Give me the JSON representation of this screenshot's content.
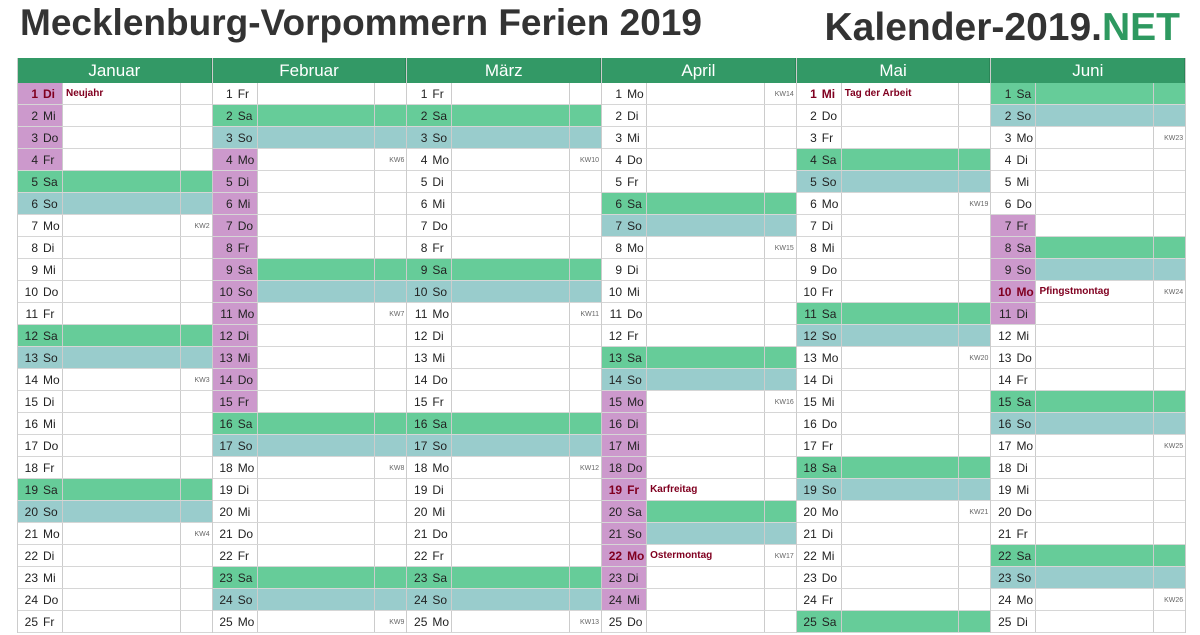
{
  "title": "Mecklenburg-Vorpommern Ferien 2019",
  "brand": {
    "main": "Kalender-2019.",
    "accent": "NET"
  },
  "colors": {
    "header": "#339966",
    "saturday": "#66cc99",
    "sunday": "#99cccc",
    "vacation": "#cc99cc",
    "holiday_text": "#800020",
    "brand_accent": "#2e9960"
  },
  "months": [
    {
      "name": "Januar",
      "days": [
        [
          "1",
          "Di",
          "",
          "Neujahr",
          1
        ],
        [
          "2",
          "Mi",
          "",
          "",
          1
        ],
        [
          "3",
          "Do",
          "",
          "",
          1
        ],
        [
          "4",
          "Fr",
          "",
          "",
          1
        ],
        [
          "5",
          "Sa",
          "",
          "",
          0
        ],
        [
          "6",
          "So",
          "",
          "",
          0
        ],
        [
          "7",
          "Mo",
          "KW2",
          "",
          0
        ],
        [
          "8",
          "Di",
          "",
          "",
          0
        ],
        [
          "9",
          "Mi",
          "",
          "",
          0
        ],
        [
          "10",
          "Do",
          "",
          "",
          0
        ],
        [
          "11",
          "Fr",
          "",
          "",
          0
        ],
        [
          "12",
          "Sa",
          "",
          "",
          0
        ],
        [
          "13",
          "So",
          "",
          "",
          0
        ],
        [
          "14",
          "Mo",
          "KW3",
          "",
          0
        ],
        [
          "15",
          "Di",
          "",
          "",
          0
        ],
        [
          "16",
          "Mi",
          "",
          "",
          0
        ],
        [
          "17",
          "Do",
          "",
          "",
          0
        ],
        [
          "18",
          "Fr",
          "",
          "",
          0
        ],
        [
          "19",
          "Sa",
          "",
          "",
          0
        ],
        [
          "20",
          "So",
          "",
          "",
          0
        ],
        [
          "21",
          "Mo",
          "KW4",
          "",
          0
        ],
        [
          "22",
          "Di",
          "",
          "",
          0
        ],
        [
          "23",
          "Mi",
          "",
          "",
          0
        ],
        [
          "24",
          "Do",
          "",
          "",
          0
        ],
        [
          "25",
          "Fr",
          "",
          "",
          0
        ]
      ]
    },
    {
      "name": "Februar",
      "days": [
        [
          "1",
          "Fr",
          "",
          "",
          0
        ],
        [
          "2",
          "Sa",
          "",
          "",
          0
        ],
        [
          "3",
          "So",
          "",
          "",
          0
        ],
        [
          "4",
          "Mo",
          "KW6",
          "",
          1
        ],
        [
          "5",
          "Di",
          "",
          "",
          1
        ],
        [
          "6",
          "Mi",
          "",
          "",
          1
        ],
        [
          "7",
          "Do",
          "",
          "",
          1
        ],
        [
          "8",
          "Fr",
          "",
          "",
          1
        ],
        [
          "9",
          "Sa",
          "",
          "",
          1
        ],
        [
          "10",
          "So",
          "",
          "",
          1
        ],
        [
          "11",
          "Mo",
          "KW7",
          "",
          1
        ],
        [
          "12",
          "Di",
          "",
          "",
          1
        ],
        [
          "13",
          "Mi",
          "",
          "",
          1
        ],
        [
          "14",
          "Do",
          "",
          "",
          1
        ],
        [
          "15",
          "Fr",
          "",
          "",
          1
        ],
        [
          "16",
          "Sa",
          "",
          "",
          0
        ],
        [
          "17",
          "So",
          "",
          "",
          0
        ],
        [
          "18",
          "Mo",
          "KW8",
          "",
          0
        ],
        [
          "19",
          "Di",
          "",
          "",
          0
        ],
        [
          "20",
          "Mi",
          "",
          "",
          0
        ],
        [
          "21",
          "Do",
          "",
          "",
          0
        ],
        [
          "22",
          "Fr",
          "",
          "",
          0
        ],
        [
          "23",
          "Sa",
          "",
          "",
          0
        ],
        [
          "24",
          "So",
          "",
          "",
          0
        ],
        [
          "25",
          "Mo",
          "KW9",
          "",
          0
        ]
      ]
    },
    {
      "name": "März",
      "days": [
        [
          "1",
          "Fr",
          "",
          "",
          0
        ],
        [
          "2",
          "Sa",
          "",
          "",
          0
        ],
        [
          "3",
          "So",
          "",
          "",
          0
        ],
        [
          "4",
          "Mo",
          "KW10",
          "",
          0
        ],
        [
          "5",
          "Di",
          "",
          "",
          0
        ],
        [
          "6",
          "Mi",
          "",
          "",
          0
        ],
        [
          "7",
          "Do",
          "",
          "",
          0
        ],
        [
          "8",
          "Fr",
          "",
          "",
          0
        ],
        [
          "9",
          "Sa",
          "",
          "",
          0
        ],
        [
          "10",
          "So",
          "",
          "",
          0
        ],
        [
          "11",
          "Mo",
          "KW11",
          "",
          0
        ],
        [
          "12",
          "Di",
          "",
          "",
          0
        ],
        [
          "13",
          "Mi",
          "",
          "",
          0
        ],
        [
          "14",
          "Do",
          "",
          "",
          0
        ],
        [
          "15",
          "Fr",
          "",
          "",
          0
        ],
        [
          "16",
          "Sa",
          "",
          "",
          0
        ],
        [
          "17",
          "So",
          "",
          "",
          0
        ],
        [
          "18",
          "Mo",
          "KW12",
          "",
          0
        ],
        [
          "19",
          "Di",
          "",
          "",
          0
        ],
        [
          "20",
          "Mi",
          "",
          "",
          0
        ],
        [
          "21",
          "Do",
          "",
          "",
          0
        ],
        [
          "22",
          "Fr",
          "",
          "",
          0
        ],
        [
          "23",
          "Sa",
          "",
          "",
          0
        ],
        [
          "24",
          "So",
          "",
          "",
          0
        ],
        [
          "25",
          "Mo",
          "KW13",
          "",
          0
        ]
      ]
    },
    {
      "name": "April",
      "days": [
        [
          "1",
          "Mo",
          "KW14",
          "",
          0
        ],
        [
          "2",
          "Di",
          "",
          "",
          0
        ],
        [
          "3",
          "Mi",
          "",
          "",
          0
        ],
        [
          "4",
          "Do",
          "",
          "",
          0
        ],
        [
          "5",
          "Fr",
          "",
          "",
          0
        ],
        [
          "6",
          "Sa",
          "",
          "",
          0
        ],
        [
          "7",
          "So",
          "",
          "",
          0
        ],
        [
          "8",
          "Mo",
          "KW15",
          "",
          0
        ],
        [
          "9",
          "Di",
          "",
          "",
          0
        ],
        [
          "10",
          "Mi",
          "",
          "",
          0
        ],
        [
          "11",
          "Do",
          "",
          "",
          0
        ],
        [
          "12",
          "Fr",
          "",
          "",
          0
        ],
        [
          "13",
          "Sa",
          "",
          "",
          0
        ],
        [
          "14",
          "So",
          "",
          "",
          0
        ],
        [
          "15",
          "Mo",
          "KW16",
          "",
          1
        ],
        [
          "16",
          "Di",
          "",
          "",
          1
        ],
        [
          "17",
          "Mi",
          "",
          "",
          1
        ],
        [
          "18",
          "Do",
          "",
          "",
          1
        ],
        [
          "19",
          "Fr",
          "",
          "Karfreitag",
          1
        ],
        [
          "20",
          "Sa",
          "",
          "",
          1
        ],
        [
          "21",
          "So",
          "",
          "",
          1
        ],
        [
          "22",
          "Mo",
          "KW17",
          "Ostermontag",
          1
        ],
        [
          "23",
          "Di",
          "",
          "",
          1
        ],
        [
          "24",
          "Mi",
          "",
          "",
          1
        ],
        [
          "25",
          "Do",
          "",
          "",
          0
        ]
      ]
    },
    {
      "name": "Mai",
      "days": [
        [
          "1",
          "Mi",
          "",
          "Tag der Arbeit",
          0
        ],
        [
          "2",
          "Do",
          "",
          "",
          0
        ],
        [
          "3",
          "Fr",
          "",
          "",
          0
        ],
        [
          "4",
          "Sa",
          "",
          "",
          0
        ],
        [
          "5",
          "So",
          "",
          "",
          0
        ],
        [
          "6",
          "Mo",
          "KW19",
          "",
          0
        ],
        [
          "7",
          "Di",
          "",
          "",
          0
        ],
        [
          "8",
          "Mi",
          "",
          "",
          0
        ],
        [
          "9",
          "Do",
          "",
          "",
          0
        ],
        [
          "10",
          "Fr",
          "",
          "",
          0
        ],
        [
          "11",
          "Sa",
          "",
          "",
          0
        ],
        [
          "12",
          "So",
          "",
          "",
          0
        ],
        [
          "13",
          "Mo",
          "KW20",
          "",
          0
        ],
        [
          "14",
          "Di",
          "",
          "",
          0
        ],
        [
          "15",
          "Mi",
          "",
          "",
          0
        ],
        [
          "16",
          "Do",
          "",
          "",
          0
        ],
        [
          "17",
          "Fr",
          "",
          "",
          0
        ],
        [
          "18",
          "Sa",
          "",
          "",
          0
        ],
        [
          "19",
          "So",
          "",
          "",
          0
        ],
        [
          "20",
          "Mo",
          "KW21",
          "",
          0
        ],
        [
          "21",
          "Di",
          "",
          "",
          0
        ],
        [
          "22",
          "Mi",
          "",
          "",
          0
        ],
        [
          "23",
          "Do",
          "",
          "",
          0
        ],
        [
          "24",
          "Fr",
          "",
          "",
          0
        ],
        [
          "25",
          "Sa",
          "",
          "",
          0
        ]
      ]
    },
    {
      "name": "Juni",
      "days": [
        [
          "1",
          "Sa",
          "",
          "",
          0
        ],
        [
          "2",
          "So",
          "",
          "",
          0
        ],
        [
          "3",
          "Mo",
          "KW23",
          "",
          0
        ],
        [
          "4",
          "Di",
          "",
          "",
          0
        ],
        [
          "5",
          "Mi",
          "",
          "",
          0
        ],
        [
          "6",
          "Do",
          "",
          "",
          0
        ],
        [
          "7",
          "Fr",
          "",
          "",
          1
        ],
        [
          "8",
          "Sa",
          "",
          "",
          1
        ],
        [
          "9",
          "So",
          "",
          "",
          1
        ],
        [
          "10",
          "Mo",
          "KW24",
          "Pfingstmontag",
          1
        ],
        [
          "11",
          "Di",
          "",
          "",
          1
        ],
        [
          "12",
          "Mi",
          "",
          "",
          0
        ],
        [
          "13",
          "Do",
          "",
          "",
          0
        ],
        [
          "14",
          "Fr",
          "",
          "",
          0
        ],
        [
          "15",
          "Sa",
          "",
          "",
          0
        ],
        [
          "16",
          "So",
          "",
          "",
          0
        ],
        [
          "17",
          "Mo",
          "KW25",
          "",
          0
        ],
        [
          "18",
          "Di",
          "",
          "",
          0
        ],
        [
          "19",
          "Mi",
          "",
          "",
          0
        ],
        [
          "20",
          "Do",
          "",
          "",
          0
        ],
        [
          "21",
          "Fr",
          "",
          "",
          0
        ],
        [
          "22",
          "Sa",
          "",
          "",
          0
        ],
        [
          "23",
          "So",
          "",
          "",
          0
        ],
        [
          "24",
          "Mo",
          "KW26",
          "",
          0
        ],
        [
          "25",
          "Di",
          "",
          "",
          0
        ]
      ]
    }
  ]
}
